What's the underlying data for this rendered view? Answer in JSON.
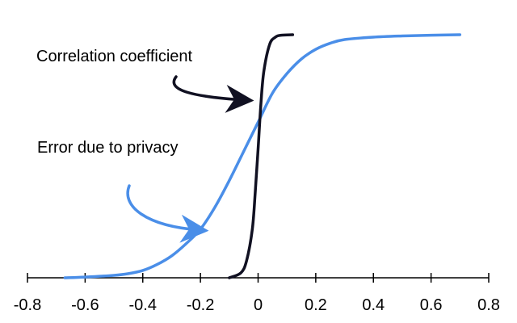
{
  "chart_data": {
    "type": "line",
    "title": "",
    "xlabel": "",
    "ylabel": "",
    "xlim": [
      -0.8,
      0.8
    ],
    "ylim": [
      0,
      1
    ],
    "grid": false,
    "x_ticks": [
      -0.8,
      -0.6,
      -0.4,
      -0.2,
      0,
      0.2,
      0.4,
      0.6,
      0.8
    ],
    "x_tick_labels": [
      "-0.8",
      "-0.6",
      "-0.4",
      "-0.2",
      "0",
      "0.2",
      "0.4",
      "0.6",
      "0.8"
    ],
    "series": [
      {
        "color": "#4a8ee8",
        "x": [
          -0.67,
          -0.6,
          -0.5,
          -0.45,
          -0.4,
          -0.35,
          -0.3,
          -0.25,
          -0.2,
          -0.15,
          -0.1,
          -0.05,
          0,
          0.05,
          0.1,
          0.15,
          0.2,
          0.25,
          0.3,
          0.4,
          0.5,
          0.6,
          0.7
        ],
        "y": [
          0.0,
          0.003,
          0.01,
          0.017,
          0.03,
          0.055,
          0.09,
          0.14,
          0.2,
          0.29,
          0.4,
          0.52,
          0.64,
          0.76,
          0.84,
          0.9,
          0.94,
          0.965,
          0.98,
          0.99,
          0.995,
          0.998,
          1.0
        ]
      },
      {
        "color": "#111122",
        "x": [
          -0.1,
          -0.06,
          -0.04,
          -0.02,
          -0.01,
          0,
          0.01,
          0.02,
          0.04,
          0.06,
          0.08,
          0.12
        ],
        "y": [
          0.0,
          0.02,
          0.07,
          0.2,
          0.35,
          0.53,
          0.72,
          0.85,
          0.96,
          0.99,
          0.998,
          1.0
        ]
      }
    ],
    "annotations": [
      {
        "text": "Correlation coefficient",
        "series_index": 1,
        "color": "#111122"
      },
      {
        "text": "Error due to privacy",
        "series_index": 0,
        "color": "#4a8ee8"
      }
    ]
  }
}
